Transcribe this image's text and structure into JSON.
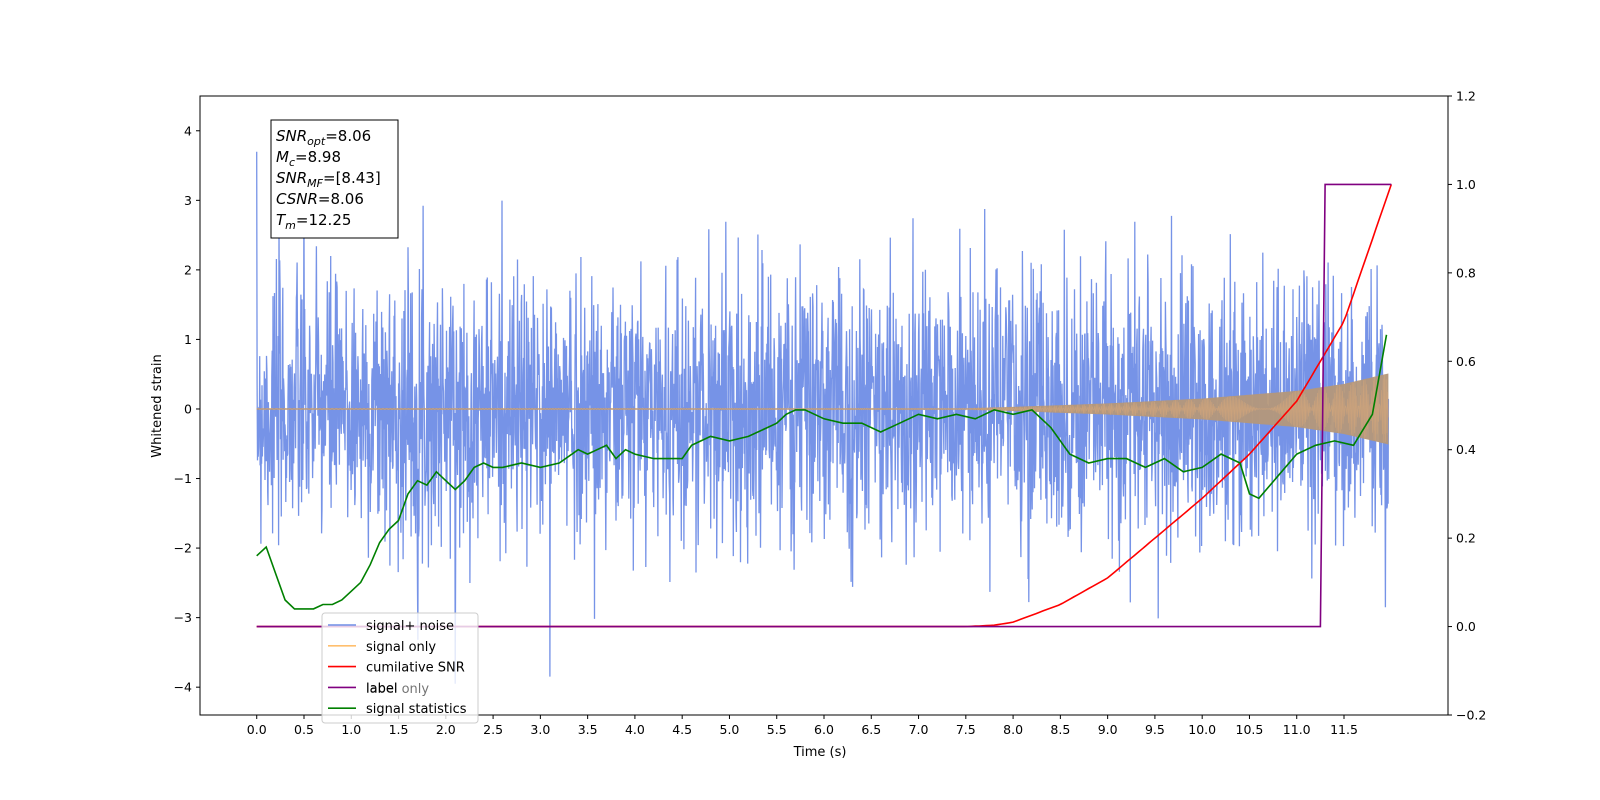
{
  "chart_data": {
    "type": "line",
    "xlabel": "Time (s)",
    "ylabel": "Whitened strain",
    "xlim": [
      -0.6,
      12.6
    ],
    "ylim": [
      -4.4,
      4.5
    ],
    "y2lim": [
      -0.2,
      1.2
    ],
    "grid": false,
    "legend_position": "bottom-left",
    "x_ticks": [
      "0.0",
      "0.5",
      "1.0",
      "1.5",
      "2.0",
      "2.5",
      "3.0",
      "3.5",
      "4.0",
      "4.5",
      "5.0",
      "5.5",
      "6.0",
      "6.5",
      "7.0",
      "7.5",
      "8.0",
      "8.5",
      "9.0",
      "9.5",
      "10.0",
      "10.5",
      "11.0",
      "11.5"
    ],
    "y_ticks": [
      "4",
      "3",
      "2",
      "1",
      "0",
      "−1",
      "−2",
      "−3",
      "−4"
    ],
    "y2_ticks": [
      "1.2",
      "1.0",
      "0.8",
      "0.6",
      "0.4",
      "0.2",
      "0.0",
      "−0.2"
    ],
    "info_box": [
      {
        "main": "SNR",
        "sub": "opt",
        "value": "=8.06"
      },
      {
        "main": "M",
        "sub": "c",
        "value": "=8.98"
      },
      {
        "main": "SNR",
        "sub": "MF",
        "value": "=[8.43]"
      },
      {
        "main": "CSNR",
        "sub": "",
        "value": "=8.06"
      },
      {
        "main": "T",
        "sub": "m",
        "value": "=12.25"
      }
    ],
    "series": [
      {
        "name": "signal+ noise",
        "color": "#6f8de6",
        "axis": "left",
        "description_values": {
          "mean": 0.0,
          "std": 1.0,
          "max": 3.9,
          "min": -3.95
        }
      },
      {
        "name": "signal only",
        "color": "#ffbf6e",
        "axis": "left",
        "envelope": {
          "x": [
            0.0,
            7.5,
            8.0,
            9.0,
            10.0,
            11.0,
            11.5,
            12.0
          ],
          "amp": [
            0.01,
            0.01,
            0.03,
            0.08,
            0.15,
            0.26,
            0.36,
            0.52
          ]
        }
      },
      {
        "name": "cumilative SNR",
        "color": "#ff0000",
        "axis": "right",
        "x": [
          0.0,
          7.5,
          7.8,
          8.0,
          8.5,
          9.0,
          9.5,
          10.0,
          10.5,
          11.0,
          11.5,
          12.0
        ],
        "values": [
          0.0,
          0.0,
          0.003,
          0.01,
          0.05,
          0.11,
          0.2,
          0.29,
          0.39,
          0.51,
          0.69,
          1.0
        ]
      },
      {
        "name": "label",
        "color": "#800080",
        "axis": "right",
        "x": [
          0.0,
          11.25,
          11.3,
          12.0
        ],
        "values": [
          0.0,
          0.0,
          1.0,
          1.0
        ]
      },
      {
        "name": "label only",
        "color": "#bfbfbf",
        "axis": "right",
        "x": [],
        "values": []
      },
      {
        "name": "signal statistics",
        "color": "#008000",
        "axis": "right",
        "x": [
          0.0,
          0.1,
          0.2,
          0.3,
          0.4,
          0.5,
          0.6,
          0.7,
          0.8,
          0.9,
          1.0,
          1.1,
          1.2,
          1.3,
          1.4,
          1.5,
          1.6,
          1.7,
          1.8,
          1.9,
          2.0,
          2.1,
          2.2,
          2.3,
          2.4,
          2.5,
          2.6,
          2.8,
          3.0,
          3.2,
          3.4,
          3.5,
          3.6,
          3.7,
          3.8,
          3.9,
          4.0,
          4.2,
          4.4,
          4.5,
          4.6,
          4.8,
          5.0,
          5.2,
          5.4,
          5.5,
          5.6,
          5.7,
          5.8,
          6.0,
          6.2,
          6.4,
          6.6,
          6.8,
          7.0,
          7.2,
          7.4,
          7.6,
          7.8,
          8.0,
          8.2,
          8.4,
          8.6,
          8.8,
          9.0,
          9.2,
          9.4,
          9.6,
          9.8,
          10.0,
          10.2,
          10.4,
          10.5,
          10.6,
          10.8,
          11.0,
          11.2,
          11.4,
          11.6,
          11.8,
          11.95
        ],
        "values": [
          0.16,
          0.18,
          0.12,
          0.06,
          0.04,
          0.04,
          0.04,
          0.05,
          0.05,
          0.06,
          0.08,
          0.1,
          0.14,
          0.19,
          0.22,
          0.24,
          0.3,
          0.33,
          0.32,
          0.35,
          0.33,
          0.31,
          0.33,
          0.36,
          0.37,
          0.36,
          0.36,
          0.37,
          0.36,
          0.37,
          0.4,
          0.39,
          0.4,
          0.41,
          0.38,
          0.4,
          0.39,
          0.38,
          0.38,
          0.38,
          0.41,
          0.43,
          0.42,
          0.43,
          0.45,
          0.46,
          0.48,
          0.49,
          0.49,
          0.47,
          0.46,
          0.46,
          0.44,
          0.46,
          0.48,
          0.47,
          0.48,
          0.47,
          0.49,
          0.48,
          0.49,
          0.45,
          0.39,
          0.37,
          0.38,
          0.38,
          0.36,
          0.38,
          0.35,
          0.36,
          0.39,
          0.37,
          0.3,
          0.29,
          0.34,
          0.39,
          0.41,
          0.42,
          0.41,
          0.48,
          0.66
        ]
      }
    ]
  }
}
